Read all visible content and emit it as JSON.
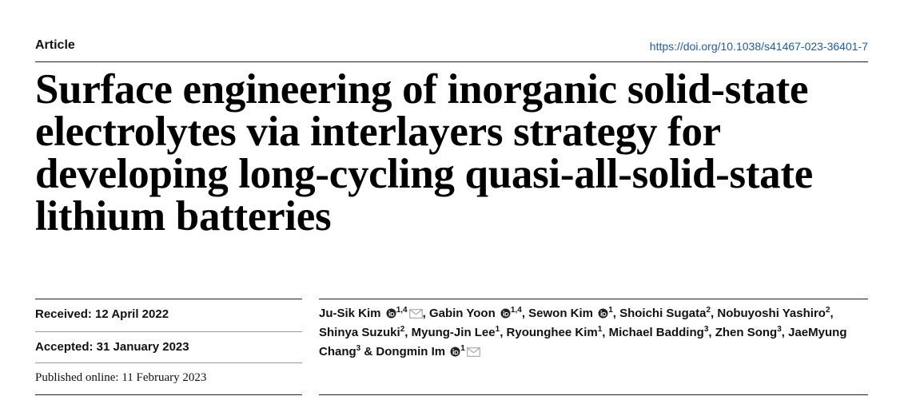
{
  "header": {
    "label": "Article",
    "doi": "https://doi.org/10.1038/s41467-023-36401-7"
  },
  "title": "Surface engineering of inorganic solid-state electrolytes via interlayers strategy for developing long-cycling quasi-all-solid-state lithium batteries",
  "dates": {
    "received": "Received: 12 April 2022",
    "accepted": "Accepted: 31 January 2023",
    "published": "Published online: 11 February 2023"
  },
  "author_separator": ",",
  "final_separator": "&",
  "authors": [
    {
      "name": "Ju-Sik Kim",
      "affiliations": "1,4",
      "orcid": true,
      "email": true
    },
    {
      "name": "Gabin Yoon",
      "affiliations": "1,4",
      "orcid": true,
      "email": false
    },
    {
      "name": "Sewon Kim",
      "affiliations": "1",
      "orcid": true,
      "email": false
    },
    {
      "name": "Shoichi Sugata",
      "affiliations": "2",
      "orcid": false,
      "email": false
    },
    {
      "name": "Nobuyoshi Yashiro",
      "affiliations": "2",
      "orcid": false,
      "email": false
    },
    {
      "name": "Shinya Suzuki",
      "affiliations": "2",
      "orcid": false,
      "email": false
    },
    {
      "name": "Myung-Jin Lee",
      "affiliations": "1",
      "orcid": false,
      "email": false
    },
    {
      "name": "Ryounghee Kim",
      "affiliations": "1",
      "orcid": false,
      "email": false
    },
    {
      "name": "Michael Badding",
      "affiliations": "3",
      "orcid": false,
      "email": false
    },
    {
      "name": "Zhen Song",
      "affiliations": "3",
      "orcid": false,
      "email": false
    },
    {
      "name": "JaeMyung Chang",
      "affiliations": "3",
      "orcid": false,
      "email": false
    },
    {
      "name": "Dongmin Im",
      "affiliations": "1",
      "orcid": true,
      "email": true
    }
  ]
}
